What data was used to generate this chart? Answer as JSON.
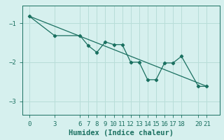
{
  "xlabel": "Humidex (Indice chaleur)",
  "background_color": "#d6f0ee",
  "line_color": "#1a7060",
  "grid_color": "#b8ddd8",
  "line1_x": [
    0,
    3,
    6,
    7,
    8,
    9,
    10,
    11,
    12,
    13,
    14,
    15,
    16,
    17,
    18,
    20,
    21
  ],
  "line1_y": [
    -0.82,
    -1.32,
    -1.32,
    -1.58,
    -1.75,
    -1.48,
    -1.55,
    -1.55,
    -2.0,
    -2.0,
    -2.45,
    -2.45,
    -2.02,
    -2.02,
    -1.85,
    -2.62,
    -2.62
  ],
  "line2_x": [
    0,
    21
  ],
  "line2_y": [
    -0.82,
    -2.62
  ],
  "ylim": [
    -3.35,
    -0.55
  ],
  "xlim": [
    -0.8,
    22.5
  ],
  "yticks": [
    -3,
    -2,
    -1
  ],
  "xticks": [
    0,
    3,
    6,
    7,
    8,
    9,
    10,
    11,
    12,
    13,
    14,
    15,
    16,
    17,
    18,
    20,
    21
  ],
  "tick_fontsize": 6.5,
  "xlabel_fontsize": 7.5
}
